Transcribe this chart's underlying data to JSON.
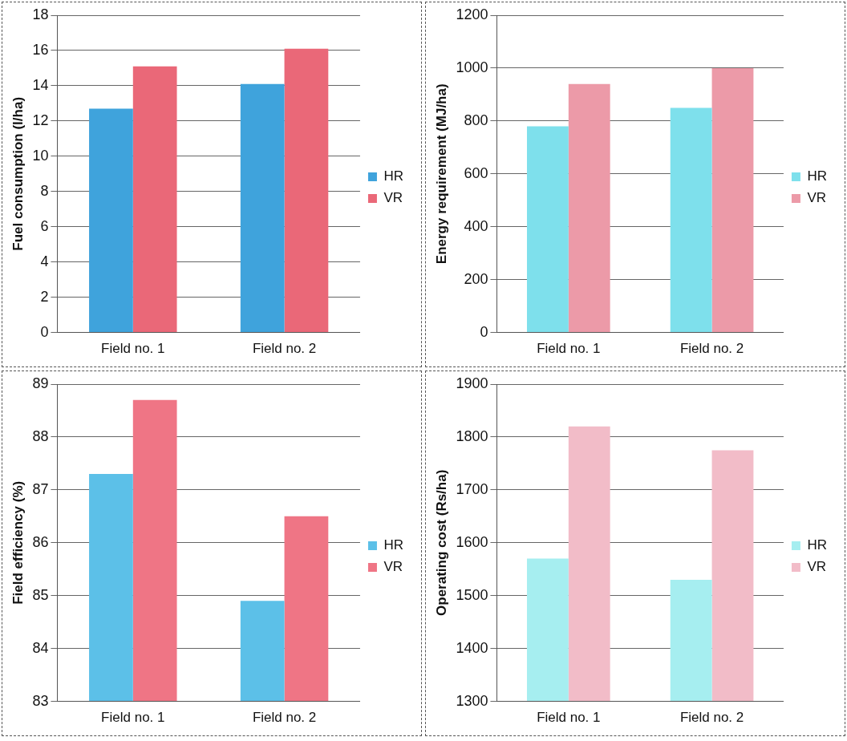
{
  "chart_data": [
    {
      "type": "bar",
      "ylabel": "Fuel consumption (l/ha)",
      "categories": [
        "Field no. 1",
        "Field no. 2"
      ],
      "series": [
        {
          "name": "HR",
          "color": "#3fa3dc",
          "values": [
            12.7,
            14.1
          ]
        },
        {
          "name": "VR",
          "color": "#ea6878",
          "values": [
            15.1,
            16.1
          ]
        }
      ],
      "ylim": [
        0,
        18
      ],
      "yticks": [
        0,
        2,
        4,
        6,
        8,
        10,
        12,
        14,
        16,
        18
      ],
      "grid": "y",
      "legend": "right"
    },
    {
      "type": "bar",
      "ylabel": "Energy requirement (MJ/ha)",
      "categories": [
        "Field no. 1",
        "Field no. 2"
      ],
      "series": [
        {
          "name": "HR",
          "color": "#7ee0ec",
          "values": [
            780,
            850
          ]
        },
        {
          "name": "VR",
          "color": "#ec9aa8",
          "values": [
            940,
            1000
          ]
        }
      ],
      "ylim": [
        0,
        1200
      ],
      "yticks": [
        0,
        200,
        400,
        600,
        800,
        1000,
        1200
      ],
      "grid": "y",
      "legend": "right"
    },
    {
      "type": "bar",
      "ylabel": "Field efficiency (%)",
      "categories": [
        "Field no. 1",
        "Field no. 2"
      ],
      "series": [
        {
          "name": "HR",
          "color": "#5cc0e8",
          "values": [
            87.3,
            84.9
          ]
        },
        {
          "name": "VR",
          "color": "#ef7585",
          "values": [
            88.7,
            86.5
          ]
        }
      ],
      "ylim": [
        83,
        89
      ],
      "yticks": [
        83,
        84,
        85,
        86,
        87,
        88,
        89
      ],
      "grid": "y",
      "legend": "right"
    },
    {
      "type": "bar",
      "ylabel": "Operating cost (Rs/ha)",
      "categories": [
        "Field no. 1",
        "Field no. 2"
      ],
      "series": [
        {
          "name": "HR",
          "color": "#a6eef0",
          "values": [
            1570,
            1530
          ]
        },
        {
          "name": "VR",
          "color": "#f2bcc8",
          "values": [
            1820,
            1775
          ]
        }
      ],
      "ylim": [
        1300,
        1900
      ],
      "yticks": [
        1300,
        1400,
        1500,
        1600,
        1700,
        1800,
        1900
      ],
      "grid": "y",
      "legend": "right"
    }
  ]
}
